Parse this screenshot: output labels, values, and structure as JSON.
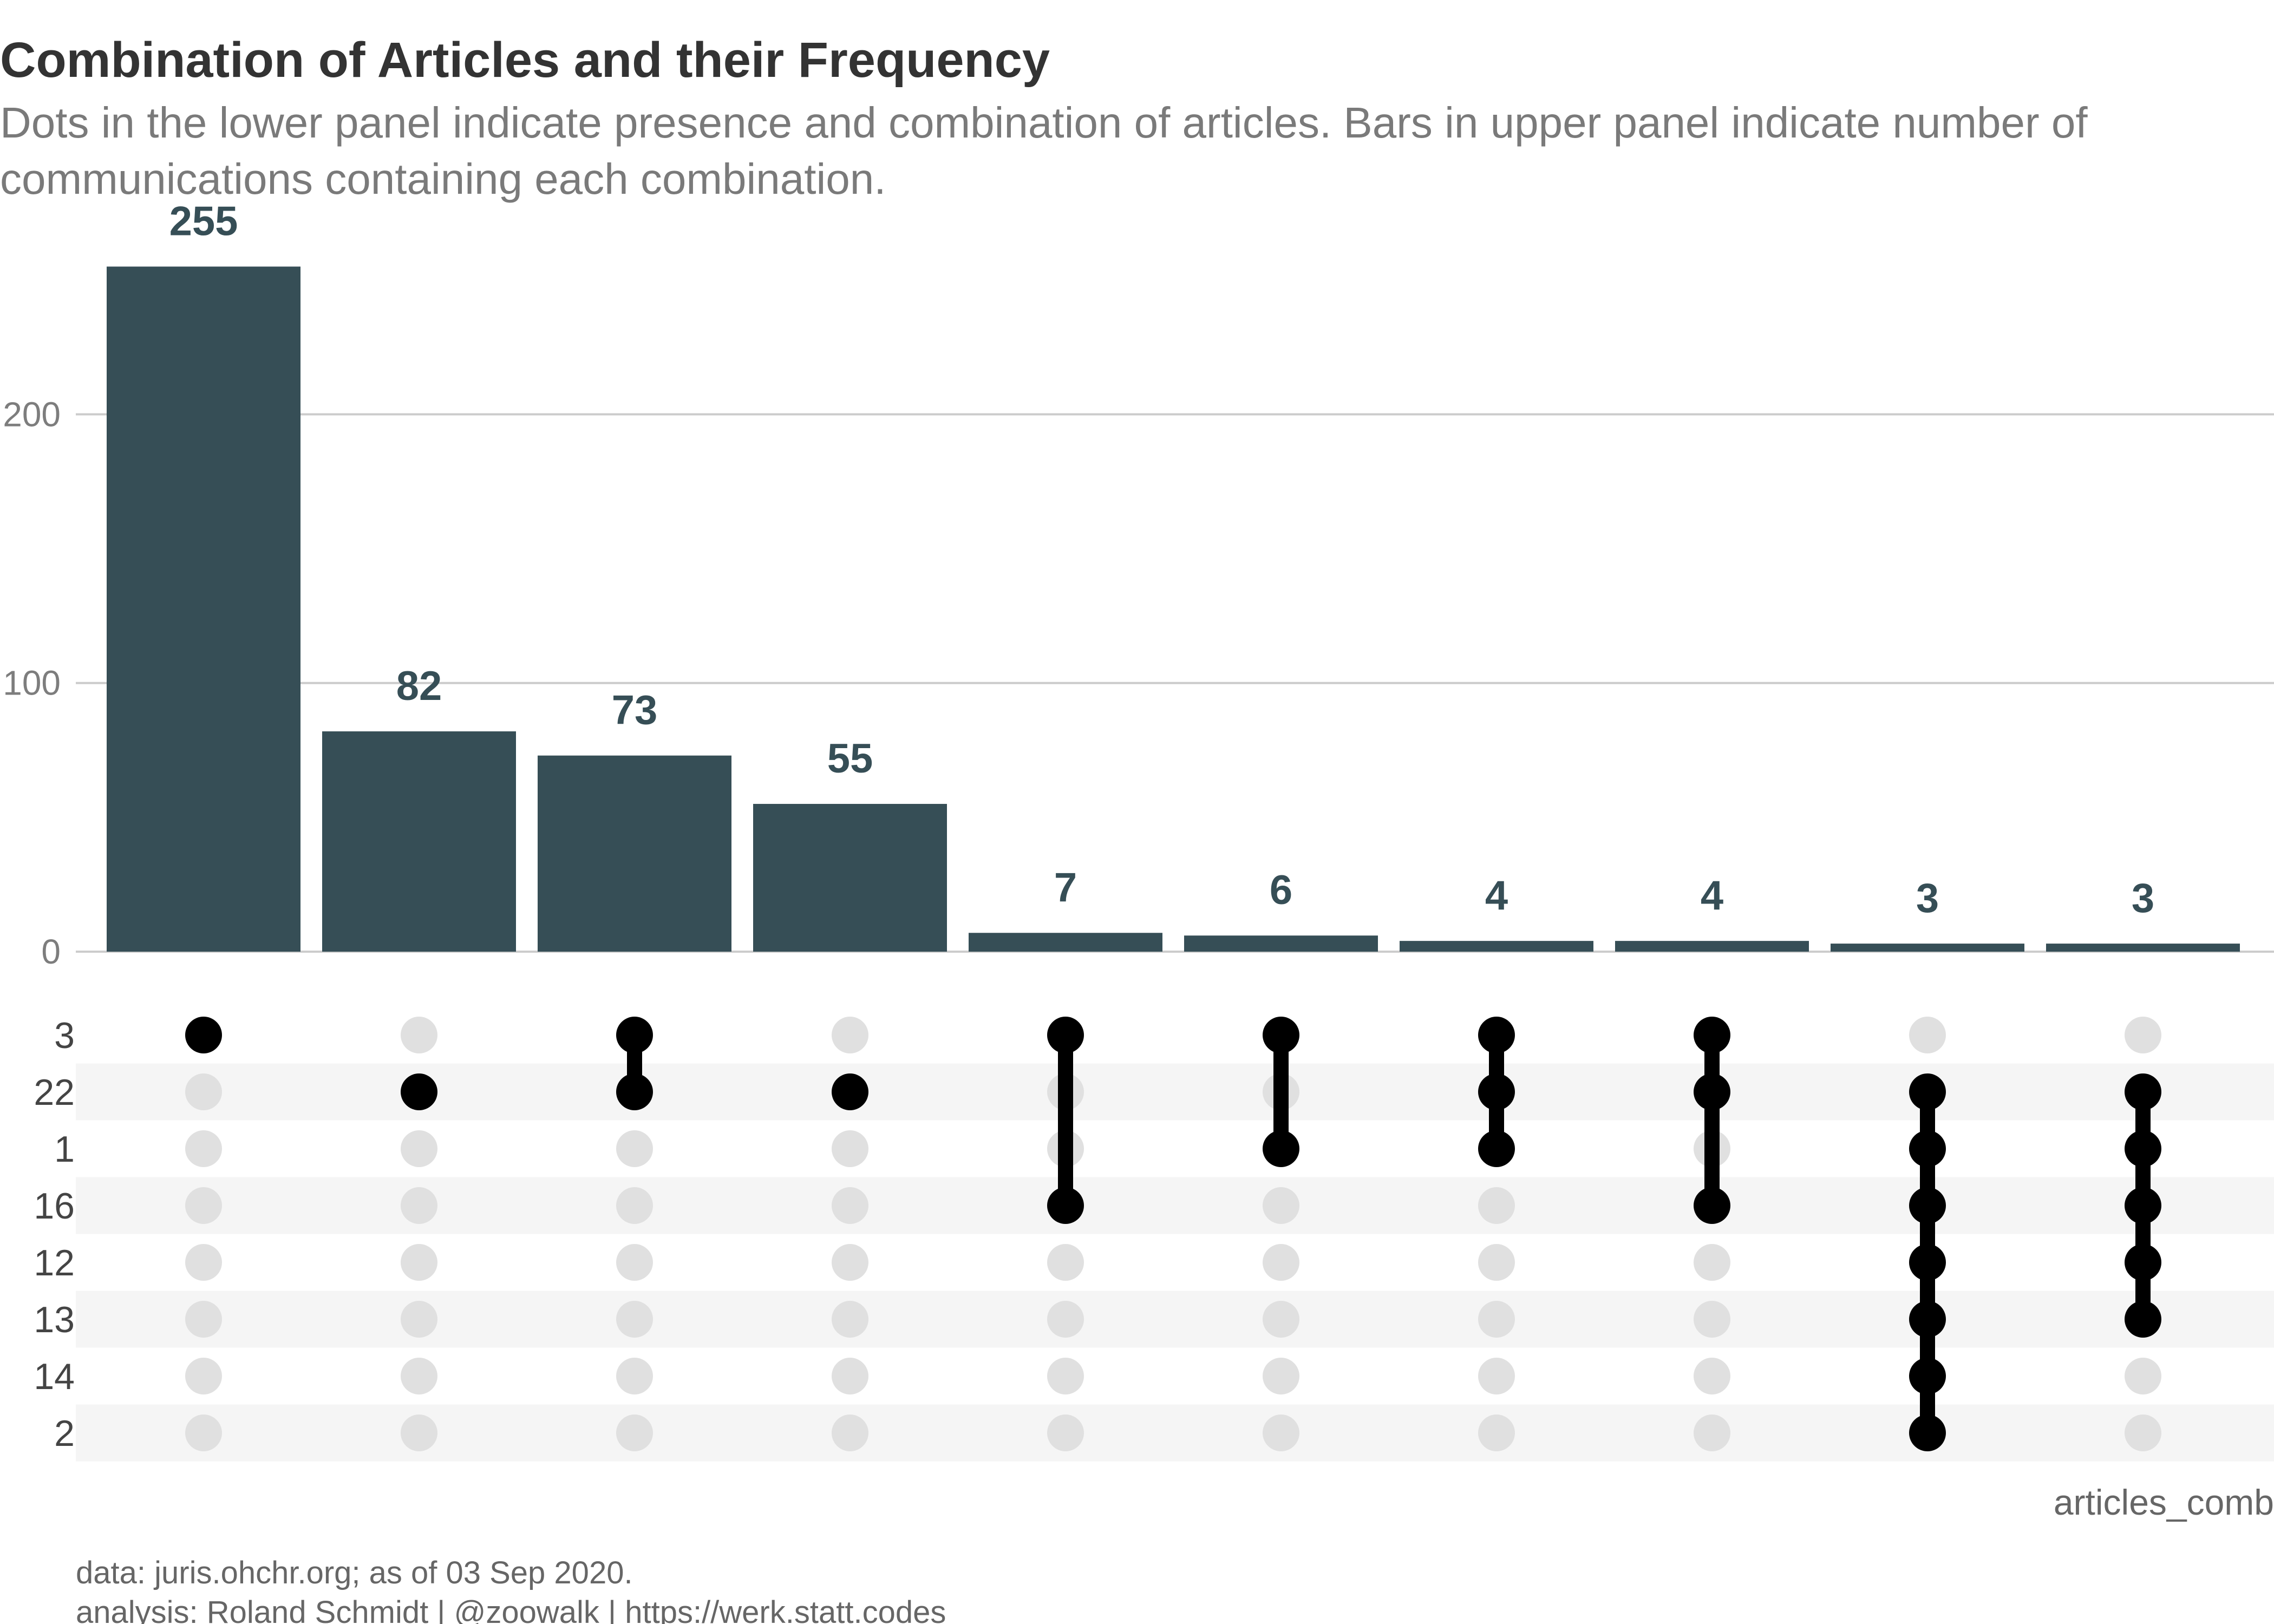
{
  "title": "Combination of Articles and their Frequency",
  "subtitle_lines": [
    "Dots in the lower panel indicate presence and combination of articles. Bars in upper panel indicate number of",
    "communications containing each combination."
  ],
  "caption_lines": [
    "data: juris.ohchr.org; as of 03 Sep 2020.",
    "analysis: Roland Schmidt | @zoowalk | https://werk.statt.codes"
  ],
  "x_axis_title": "articles_comb",
  "colors": {
    "bar": "#364e56",
    "dot_active": "#000000",
    "dot_inactive": "#e0e0e0",
    "stripe": "#f5f5f5",
    "grid": "#cccccc"
  },
  "chart_data": {
    "type": "bar",
    "subtype": "upset",
    "sets": [
      "3",
      "22",
      "1",
      "16",
      "12",
      "13",
      "14",
      "2"
    ],
    "combinations": [
      {
        "members": [
          "3"
        ],
        "value": 255
      },
      {
        "members": [
          "22"
        ],
        "value": 82
      },
      {
        "members": [
          "3",
          "22"
        ],
        "value": 73
      },
      {
        "members": [
          "22"
        ],
        "value": 55
      },
      {
        "members": [
          "3",
          "16"
        ],
        "value": 7
      },
      {
        "members": [
          "3",
          "1"
        ],
        "value": 6
      },
      {
        "members": [
          "3",
          "22",
          "1"
        ],
        "value": 4
      },
      {
        "members": [
          "3",
          "22",
          "16"
        ],
        "value": 4
      },
      {
        "members": [
          "22",
          "1",
          "16",
          "12",
          "13",
          "14",
          "2"
        ],
        "value": 3
      },
      {
        "members": [
          "22",
          "1",
          "16",
          "12",
          "13"
        ],
        "value": 3
      }
    ],
    "y_ticks": [
      0,
      100,
      200
    ],
    "ylim": [
      0,
      270
    ],
    "grid": true,
    "legend": "none"
  }
}
